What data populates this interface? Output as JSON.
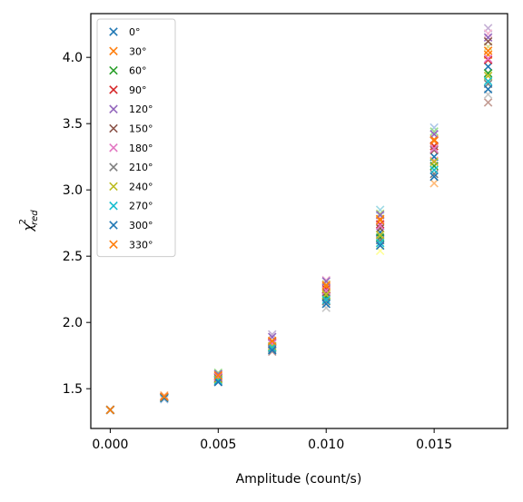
{
  "chart_data": {
    "type": "scatter",
    "title": "",
    "xlabel": "Amplitude (count/s)",
    "ylabel_main": "χ",
    "ylabel_sup": "2",
    "ylabel_sub": "red",
    "xlim": [
      -0.0009,
      0.0184
    ],
    "ylim": [
      1.2,
      4.33
    ],
    "xticks": [
      {
        "value": 0.0,
        "label": "0.000"
      },
      {
        "value": 0.005,
        "label": "0.005"
      },
      {
        "value": 0.01,
        "label": "0.010"
      },
      {
        "value": 0.015,
        "label": "0.015"
      }
    ],
    "yticks": [
      {
        "value": 1.5,
        "label": "1.5"
      },
      {
        "value": 2.0,
        "label": "2.0"
      },
      {
        "value": 2.5,
        "label": "2.5"
      },
      {
        "value": 3.0,
        "label": "3.0"
      },
      {
        "value": 3.5,
        "label": "3.5"
      },
      {
        "value": 4.0,
        "label": "4.0"
      }
    ],
    "grid": false,
    "legend_position": "top-left",
    "x": [
      0.0,
      0.0025,
      0.005,
      0.0075,
      0.01,
      0.0125,
      0.015,
      0.0175
    ],
    "series": [
      {
        "name": "0$^\\circ$",
        "label": "0°",
        "color": "#1f77b4",
        "values": [
          1.34,
          1.43,
          1.57,
          1.82,
          2.19,
          2.68,
          3.25,
          3.93
        ]
      },
      {
        "name": "30$^\\circ$",
        "label": "30°",
        "color": "#ff7f0e",
        "values": [
          1.34,
          1.44,
          1.6,
          1.86,
          2.27,
          2.78,
          3.38,
          4.02
        ]
      },
      {
        "name": "60$^\\circ$",
        "label": "60°",
        "color": "#2ca02c",
        "values": [
          1.34,
          1.43,
          1.58,
          1.81,
          2.2,
          2.64,
          3.18,
          3.88
        ]
      },
      {
        "name": "90$^\\circ$",
        "label": "90°",
        "color": "#d62728",
        "values": [
          1.34,
          1.44,
          1.59,
          1.85,
          2.25,
          2.74,
          3.33,
          3.98
        ]
      },
      {
        "name": "120$^\\circ$",
        "label": "120°",
        "color": "#9467bd",
        "values": [
          1.34,
          1.44,
          1.61,
          1.89,
          2.31,
          2.81,
          3.42,
          4.15
        ]
      },
      {
        "name": "150$^\\circ$",
        "label": "150°",
        "color": "#8c564b",
        "values": [
          1.34,
          1.43,
          1.58,
          1.84,
          2.23,
          2.71,
          3.3,
          4.12
        ]
      },
      {
        "name": "180$^\\circ$",
        "label": "180°",
        "color": "#e377c2",
        "values": [
          1.34,
          1.44,
          1.59,
          1.84,
          2.24,
          2.73,
          3.31,
          3.99
        ]
      },
      {
        "name": "210$^\\circ$",
        "label": "210°",
        "color": "#7f7f7f",
        "values": [
          1.34,
          1.43,
          1.56,
          1.8,
          2.16,
          2.62,
          3.12,
          3.8
        ]
      },
      {
        "name": "240$^\\circ$",
        "label": "240°",
        "color": "#bcbd22",
        "values": [
          1.34,
          1.43,
          1.57,
          1.82,
          2.21,
          2.66,
          3.21,
          3.86
        ]
      },
      {
        "name": "270$^\\circ$",
        "label": "270°",
        "color": "#17becf",
        "values": [
          1.34,
          1.43,
          1.56,
          1.81,
          2.17,
          2.6,
          3.15,
          3.82
        ]
      },
      {
        "name": "300$^\\circ$",
        "label": "300°",
        "color": "#1f77b4",
        "values": [
          1.34,
          1.43,
          1.55,
          1.79,
          2.14,
          2.58,
          3.1,
          3.76
        ]
      },
      {
        "name": "330$^\\circ$",
        "label": "330°",
        "color": "#ff7f0e",
        "values": [
          1.34,
          1.44,
          1.6,
          1.86,
          2.28,
          2.77,
          3.37,
          4.05
        ]
      }
    ],
    "extra_points": {
      "color_cycle": [
        "#aec7e8",
        "#ffbb78",
        "#98df8a",
        "#ff9896",
        "#c5b0d5",
        "#c49c94",
        "#f7b6d2",
        "#c7c7c7",
        "#dbdb8d",
        "#9edae5",
        "#ffff99",
        "#b3de69"
      ],
      "x": [
        0.0025,
        0.0025,
        0.005,
        0.005,
        0.0075,
        0.0075,
        0.01,
        0.01,
        0.01,
        0.0125,
        0.0125,
        0.0125,
        0.015,
        0.015,
        0.015,
        0.015,
        0.0175,
        0.0175,
        0.0175,
        0.0175,
        0.0175
      ],
      "y": [
        1.42,
        1.45,
        1.62,
        1.55,
        1.91,
        1.78,
        2.32,
        2.11,
        2.29,
        2.85,
        2.54,
        2.82,
        3.47,
        3.05,
        3.44,
        3.22,
        4.22,
        3.66,
        4.18,
        3.72,
        4.08
      ]
    }
  }
}
